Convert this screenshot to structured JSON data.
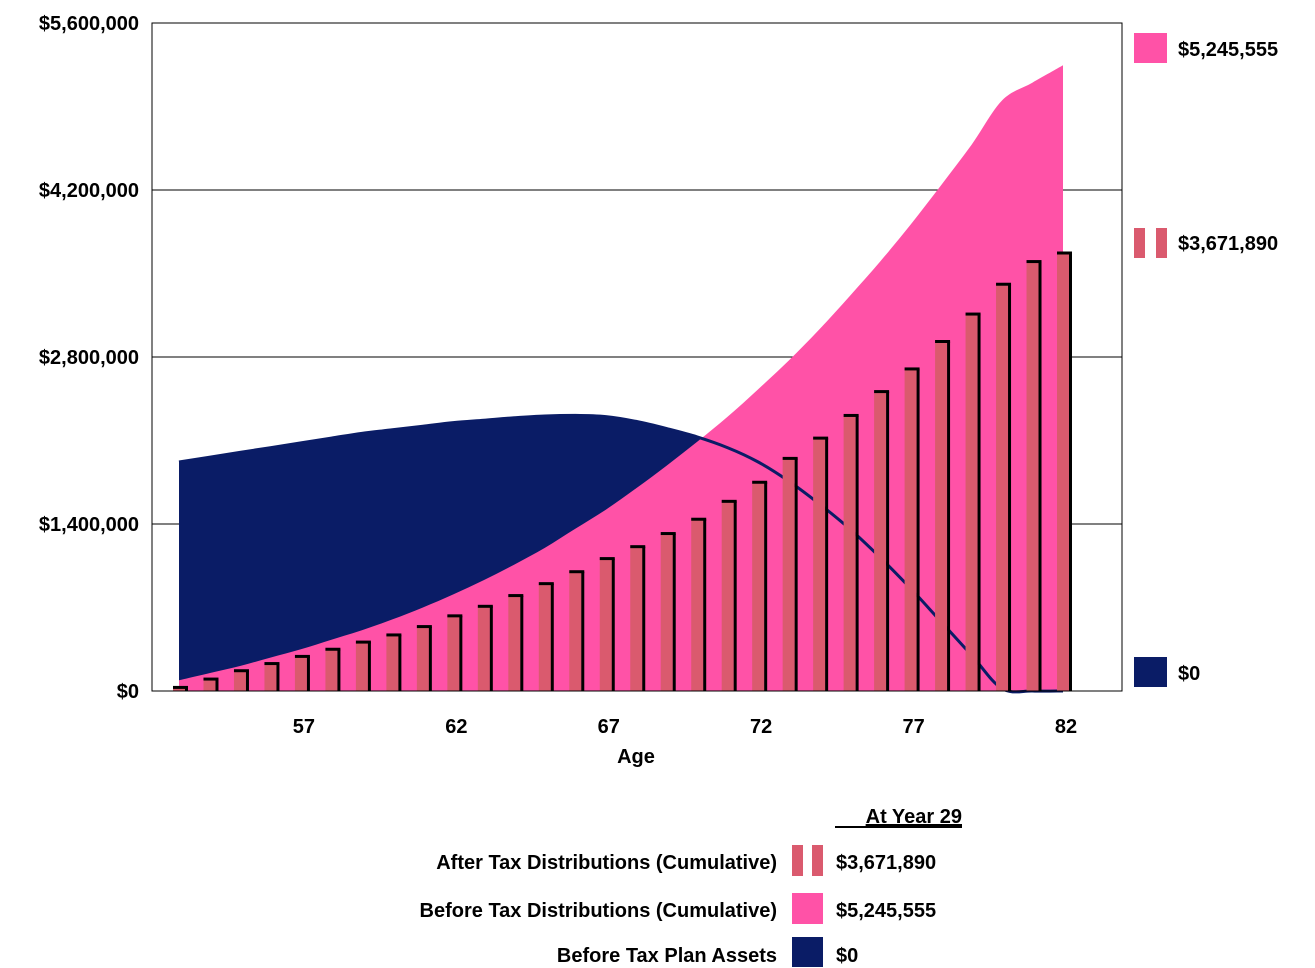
{
  "colors": {
    "after_tax": "#DA5A6E",
    "before_tax": "#FF52A7",
    "plan_assets": "#0A1C66",
    "bar_edge": "#000000",
    "grid": "#000000"
  },
  "legend": {
    "header": "At Year 29",
    "rows": [
      {
        "label": "After Tax Distributions (Cumulative)",
        "value": "$3,671,890",
        "swatch": "after_tax"
      },
      {
        "label": "Before Tax Distributions (Cumulative)",
        "value": "$5,245,555",
        "swatch": "before_tax"
      },
      {
        "label": "Before Tax Plan Assets",
        "value": "$0",
        "swatch": "plan_assets"
      }
    ]
  },
  "end_labels": {
    "before_tax": "$5,245,555",
    "after_tax": "$3,671,890",
    "plan_assets": "$0"
  },
  "chart_data": {
    "type": "area",
    "title": "",
    "xlabel": "Age",
    "ylabel": "",
    "ylim": [
      0,
      5600000
    ],
    "y_ticks": [
      {
        "value": 0,
        "label": "$0"
      },
      {
        "value": 1400000,
        "label": "$1,400,000"
      },
      {
        "value": 2800000,
        "label": "$2,800,000"
      },
      {
        "value": 4200000,
        "label": "$4,200,000"
      },
      {
        "value": 5600000,
        "label": "$5,600,000"
      }
    ],
    "x_ticks": [
      {
        "value": 57,
        "label": "57"
      },
      {
        "value": 62,
        "label": "62"
      },
      {
        "value": 67,
        "label": "67"
      },
      {
        "value": 72,
        "label": "72"
      },
      {
        "value": 77,
        "label": "77"
      },
      {
        "value": 82,
        "label": "82"
      }
    ],
    "x": [
      53,
      54,
      55,
      56,
      57,
      58,
      59,
      60,
      61,
      62,
      63,
      64,
      65,
      66,
      67,
      68,
      69,
      70,
      71,
      72,
      73,
      74,
      75,
      76,
      77,
      78,
      79,
      80,
      81,
      82
    ],
    "series": [
      {
        "name": "Before Tax Plan Assets",
        "type": "area",
        "color_key": "plan_assets",
        "values": [
          1920000,
          1960000,
          2000000,
          2040000,
          2080000,
          2120000,
          2160000,
          2190000,
          2220000,
          2250000,
          2270000,
          2290000,
          2305000,
          2310000,
          2300000,
          2260000,
          2200000,
          2130000,
          2040000,
          1920000,
          1760000,
          1570000,
          1360000,
          1120000,
          860000,
          580000,
          300000,
          20000,
          0,
          0
        ]
      },
      {
        "name": "Before Tax Distributions (Cumulative)",
        "type": "area",
        "color_key": "before_tax",
        "values": [
          90000,
          150000,
          210000,
          280000,
          350000,
          430000,
          510000,
          600000,
          700000,
          810000,
          930000,
          1060000,
          1200000,
          1360000,
          1520000,
          1700000,
          1890000,
          2090000,
          2300000,
          2530000,
          2770000,
          3030000,
          3310000,
          3600000,
          3910000,
          4240000,
          4580000,
          4950000,
          5100000,
          5245555
        ]
      },
      {
        "name": "After Tax Distributions (Cumulative)",
        "type": "bar",
        "color_key": "after_tax",
        "values": [
          30000,
          100000,
          170000,
          230000,
          290000,
          350000,
          410000,
          470000,
          540000,
          630000,
          710000,
          800000,
          900000,
          1000000,
          1110000,
          1210000,
          1320000,
          1440000,
          1590000,
          1750000,
          1950000,
          2120000,
          2310000,
          2510000,
          2700000,
          2930000,
          3160000,
          3410000,
          3600000,
          3671890
        ]
      }
    ]
  }
}
